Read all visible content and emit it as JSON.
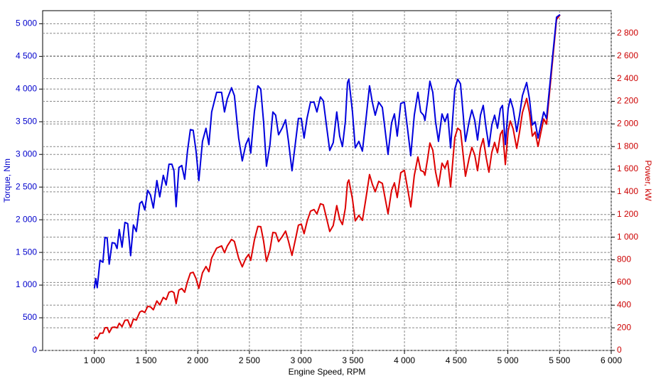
{
  "chart_data": {
    "type": "line",
    "x_label": "Engine Speed, RPM",
    "y_label": "Torque, Nm",
    "y2_label": "Power, kW",
    "grid": true,
    "xlim": [
      500,
      6000
    ],
    "xticks": [
      {
        "value": 1000,
        "label": "1 000"
      },
      {
        "value": 1500,
        "label": "1 500"
      },
      {
        "value": 2000,
        "label": "2 000"
      },
      {
        "value": 2500,
        "label": "2 500"
      },
      {
        "value": 3000,
        "label": "3 000"
      },
      {
        "value": 3500,
        "label": "3 500"
      },
      {
        "value": 4000,
        "label": "4 000"
      },
      {
        "value": 4500,
        "label": "4 500"
      },
      {
        "value": 5000,
        "label": "5 000"
      },
      {
        "value": 5500,
        "label": "5 500"
      },
      {
        "value": 6000,
        "label": "6 000"
      }
    ],
    "ylim": [
      0,
      5200
    ],
    "yticks": [
      0,
      500,
      {
        "value": 1000,
        "label": "1 000"
      },
      {
        "value": 1500,
        "label": "1 500"
      },
      {
        "value": 2000,
        "label": "2 000"
      },
      {
        "value": 2500,
        "label": "2 500"
      },
      {
        "value": 3000,
        "label": "3 000"
      },
      {
        "value": 3500,
        "label": "3 500"
      },
      {
        "value": 4000,
        "label": "4 000"
      },
      {
        "value": 4500,
        "label": "4 500"
      },
      {
        "value": 5000,
        "label": "5 000"
      }
    ],
    "y2lim": [
      0,
      3000
    ],
    "y2ticks": [
      0,
      200,
      400,
      600,
      800,
      {
        "value": 1000,
        "label": "1 000"
      },
      {
        "value": 1200,
        "label": "1 200"
      },
      {
        "value": 1400,
        "label": "1 400"
      },
      {
        "value": 1600,
        "label": "1 600"
      },
      {
        "value": 1800,
        "label": "1 800"
      },
      {
        "value": 2000,
        "label": "2 000"
      },
      {
        "value": 2200,
        "label": "2 200"
      },
      {
        "value": 2400,
        "label": "2 400"
      },
      {
        "value": 2600,
        "label": "2 600"
      },
      {
        "value": 2800,
        "label": "2 800"
      }
    ],
    "x": [
      1000,
      1014,
      1028,
      1055,
      1083,
      1103,
      1124,
      1144,
      1172,
      1199,
      1220,
      1241,
      1268,
      1296,
      1323,
      1351,
      1378,
      1406,
      1440,
      1461,
      1488,
      1516,
      1543,
      1571,
      1605,
      1633,
      1667,
      1695,
      1722,
      1750,
      1770,
      1791,
      1818,
      1846,
      1874,
      1901,
      1929,
      1956,
      1984,
      2011,
      2046,
      2080,
      2108,
      2135,
      2183,
      2231,
      2259,
      2286,
      2327,
      2355,
      2396,
      2431,
      2465,
      2493,
      2513,
      2548,
      2582,
      2610,
      2637,
      2665,
      2699,
      2727,
      2754,
      2782,
      2816,
      2850,
      2878,
      2912,
      2947,
      2974,
      3002,
      3029,
      3057,
      3091,
      3125,
      3153,
      3187,
      3215,
      3249,
      3277,
      3311,
      3345,
      3373,
      3400,
      3428,
      3449,
      3462,
      3497,
      3524,
      3559,
      3593,
      3627,
      3662,
      3689,
      3717,
      3751,
      3786,
      3841,
      3875,
      3903,
      3930,
      3964,
      3999,
      4033,
      4061,
      4095,
      4130,
      4157,
      4185,
      4198,
      4226,
      4246,
      4274,
      4301,
      4329,
      4363,
      4391,
      4418,
      4446,
      4487,
      4515,
      4542,
      4563,
      4590,
      4625,
      4652,
      4680,
      4707,
      4735,
      4762,
      4790,
      4817,
      4845,
      4872,
      4900,
      4928,
      4948,
      4976,
      5003,
      5024,
      5051,
      5086,
      5113,
      5141,
      5182,
      5209,
      5237,
      5264,
      5292,
      5319,
      5347,
      5374,
      5402,
      5436,
      5471,
      5505
    ],
    "series": [
      {
        "color": "#0000dd",
        "axis": "y",
        "values": [
          950,
          1100,
          960,
          1380,
          1350,
          1730,
          1720,
          1320,
          1650,
          1640,
          1560,
          1850,
          1580,
          1960,
          1940,
          1450,
          1920,
          1820,
          2250,
          2280,
          2150,
          2450,
          2380,
          2180,
          2600,
          2350,
          2680,
          2530,
          2850,
          2850,
          2750,
          2200,
          2800,
          2830,
          2620,
          3050,
          3380,
          3370,
          3050,
          2600,
          3200,
          3400,
          3150,
          3650,
          3950,
          3950,
          3650,
          3850,
          4020,
          3900,
          3250,
          2900,
          3150,
          3250,
          3020,
          3650,
          4050,
          4000,
          3500,
          2820,
          3150,
          3650,
          3600,
          3300,
          3400,
          3530,
          3200,
          2750,
          3200,
          3550,
          3550,
          3250,
          3550,
          3800,
          3800,
          3650,
          3880,
          3820,
          3400,
          3060,
          3180,
          3650,
          3280,
          3120,
          3500,
          4100,
          4150,
          3650,
          3100,
          3200,
          3050,
          3530,
          4050,
          3800,
          3600,
          3800,
          3720,
          3000,
          3480,
          3620,
          3280,
          3780,
          3800,
          3350,
          2980,
          3600,
          3950,
          3650,
          3600,
          3520,
          3850,
          4120,
          3950,
          3500,
          3200,
          3620,
          3500,
          3620,
          3100,
          4000,
          4150,
          4080,
          3700,
          3200,
          3500,
          3680,
          3520,
          3220,
          3600,
          3750,
          3400,
          3120,
          3450,
          3600,
          3400,
          3700,
          3750,
          3150,
          3700,
          3850,
          3700,
          3350,
          3600,
          3900,
          4100,
          3850,
          3450,
          3500,
          3250,
          3450,
          3650,
          3550,
          4000,
          4550,
          5100,
          5140
        ]
      },
      {
        "color": "#dd0000",
        "axis": "y2",
        "values": [
          99,
          117,
          103,
          152,
          153,
          200,
          202,
          158,
          203,
          206,
          199,
          240,
          210,
          266,
          269,
          205,
          277,
          268,
          339,
          349,
          335,
          389,
          385,
          359,
          437,
          402,
          468,
          449,
          514,
          522,
          510,
          413,
          533,
          547,
          514,
          607,
          683,
          690,
          634,
          548,
          686,
          741,
          695,
          816,
          903,
          923,
          863,
          922,
          980,
          962,
          815,
          738,
          813,
          848,
          795,
          974,
          1095,
          1093,
          967,
          787,
          890,
          1042,
          1038,
          961,
          1003,
          1054,
          964,
          839,
          988,
          1106,
          1116,
          1031,
          1136,
          1230,
          1244,
          1205,
          1295,
          1286,
          1157,
          1050,
          1103,
          1279,
          1159,
          1111,
          1256,
          1481,
          1505,
          1337,
          1144,
          1193,
          1148,
          1341,
          1553,
          1468,
          1401,
          1493,
          1475,
          1207,
          1412,
          1480,
          1350,
          1569,
          1591,
          1415,
          1267,
          1544,
          1708,
          1589,
          1578,
          1547,
          1704,
          1832,
          1768,
          1576,
          1451,
          1654,
          1609,
          1675,
          1443,
          1880,
          1962,
          1941,
          1768,
          1538,
          1695,
          1793,
          1725,
          1587,
          1785,
          1870,
          1706,
          1574,
          1750,
          1837,
          1745,
          1909,
          1943,
          1641,
          1939,
          2026,
          1957,
          1784,
          1928,
          2100,
          2225,
          2100,
          1892,
          1929,
          1801,
          1922,
          2044,
          1998,
          2263,
          2590,
          2922,
          2963
        ]
      }
    ]
  }
}
